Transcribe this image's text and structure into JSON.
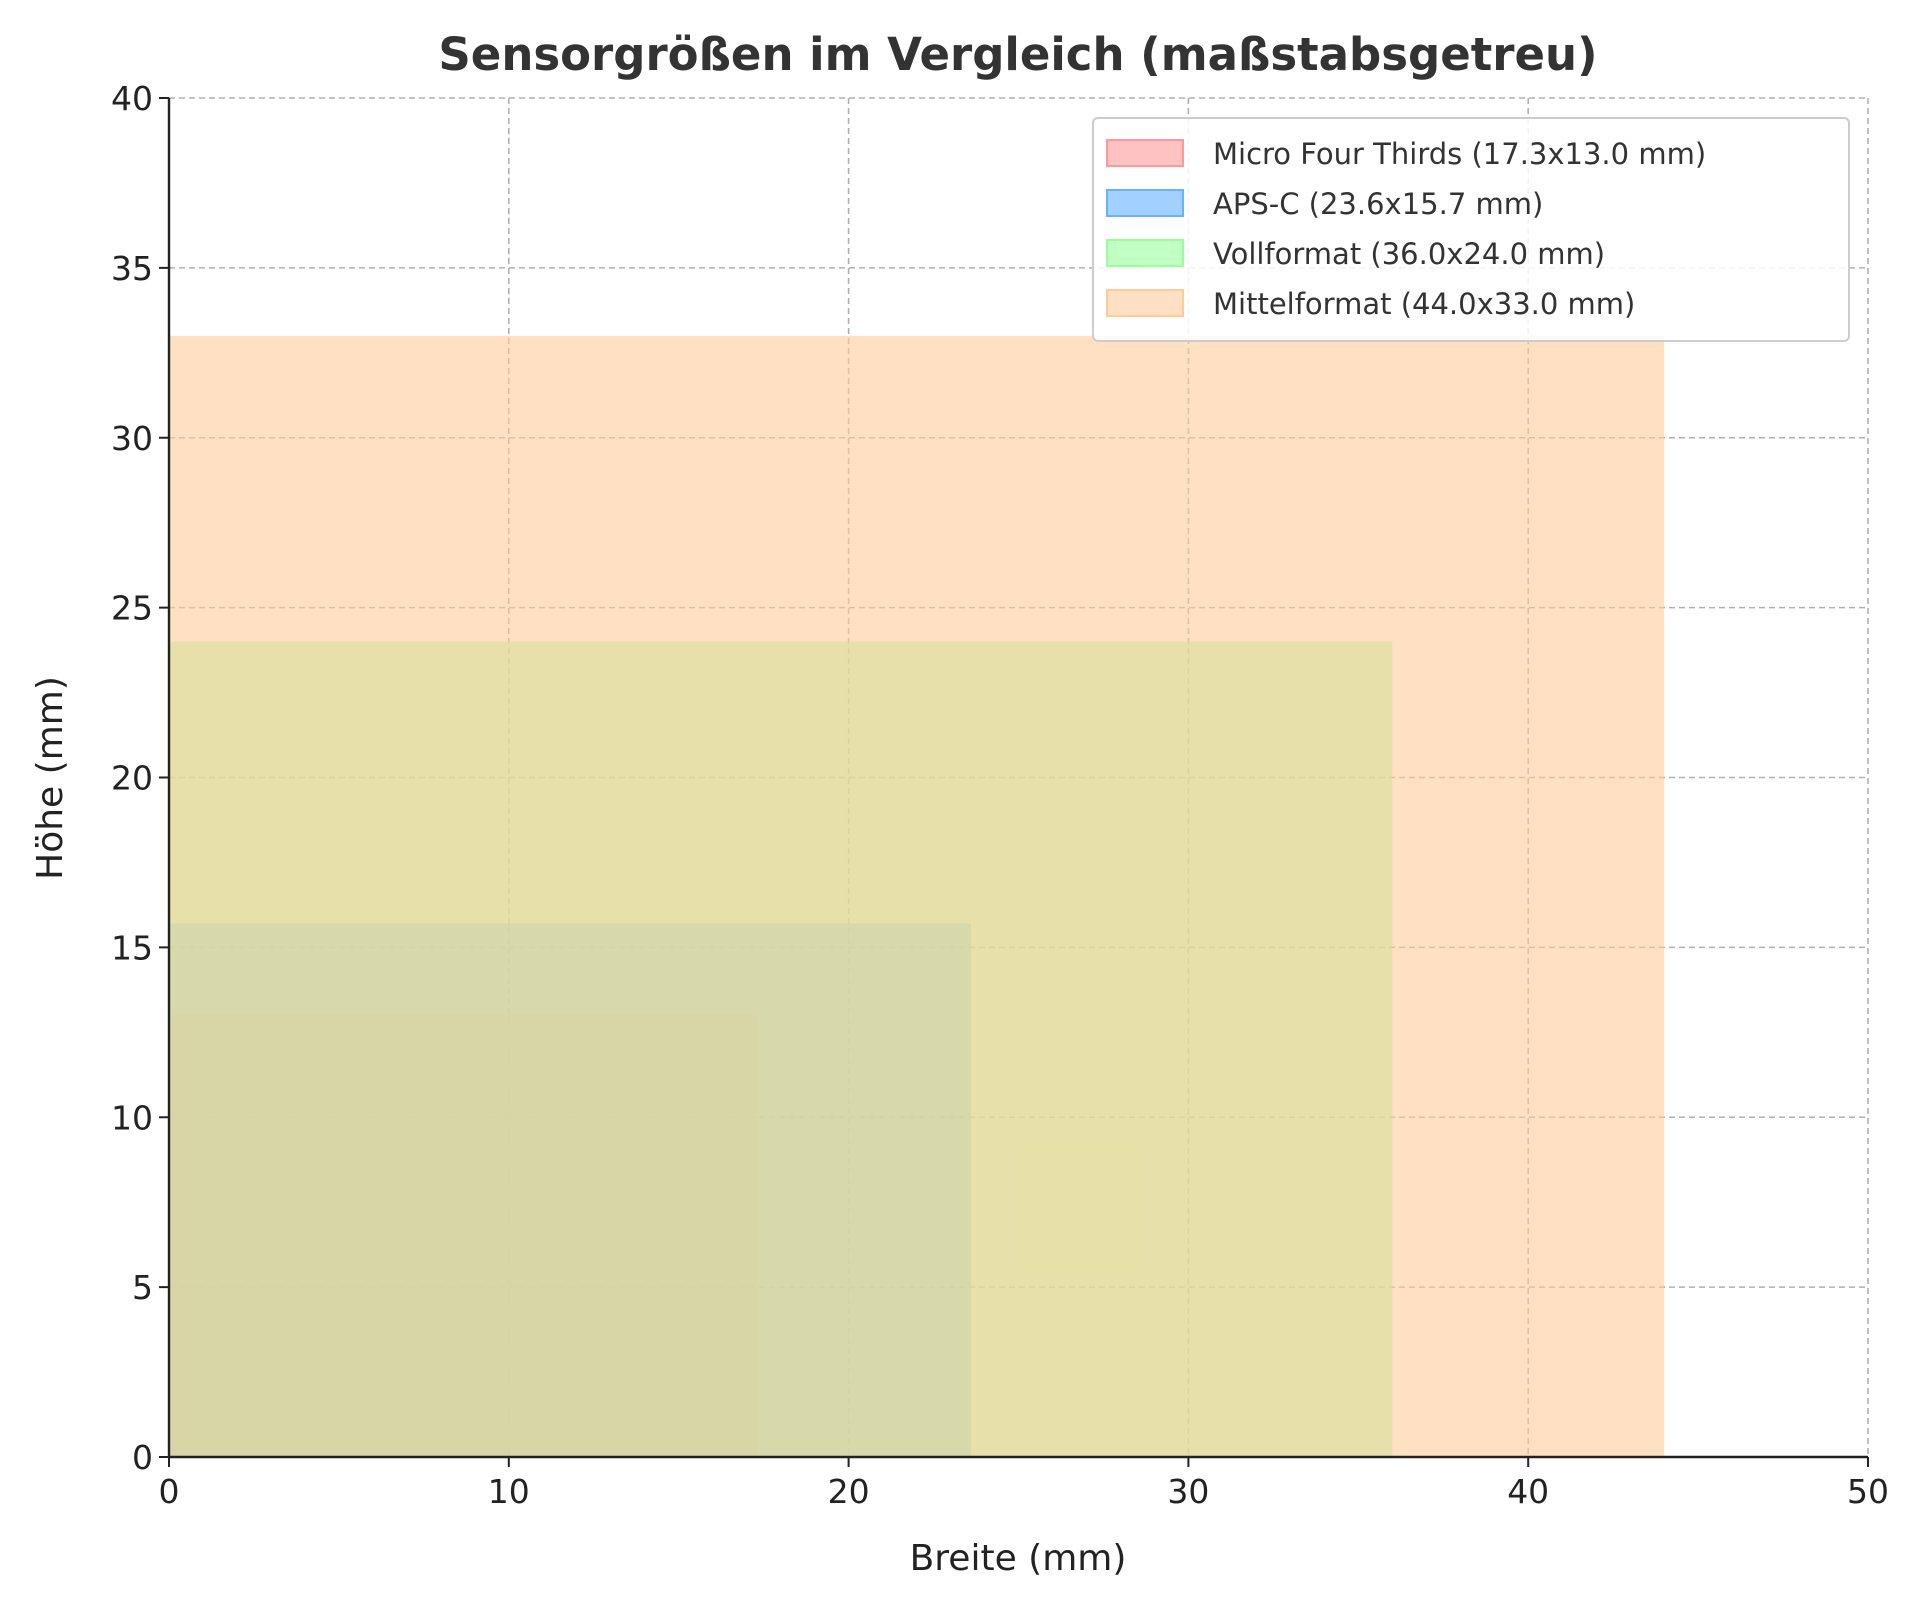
{
  "chart_data": {
    "type": "area",
    "title": "Sensorgrößen im Vergleich (maßstabsgetreu)",
    "xlabel": "Breite (mm)",
    "ylabel": "Höhe (mm)",
    "xlim": [
      0,
      50
    ],
    "ylim": [
      0,
      40
    ],
    "xticks": [
      "0",
      "10",
      "20",
      "30",
      "40",
      "50"
    ],
    "yticks": [
      "0",
      "5",
      "10",
      "15",
      "20",
      "25",
      "30",
      "35",
      "40"
    ],
    "grid": true,
    "legend_position": "top-right",
    "series": [
      {
        "name": "Micro Four Thirds (17.3x13.0 mm)",
        "width": 17.3,
        "height": 13.0,
        "color": "#ff9999"
      },
      {
        "name": "APS-C (23.6x15.7 mm)",
        "width": 23.6,
        "height": 15.7,
        "color": "#66b3ff"
      },
      {
        "name": "Vollformat (36.0x24.0 mm)",
        "width": 36.0,
        "height": 24.0,
        "color": "#99ff99"
      },
      {
        "name": "Mittelformat (44.0x33.0 mm)",
        "width": 44.0,
        "height": 33.0,
        "color": "#ffcc99"
      }
    ]
  }
}
